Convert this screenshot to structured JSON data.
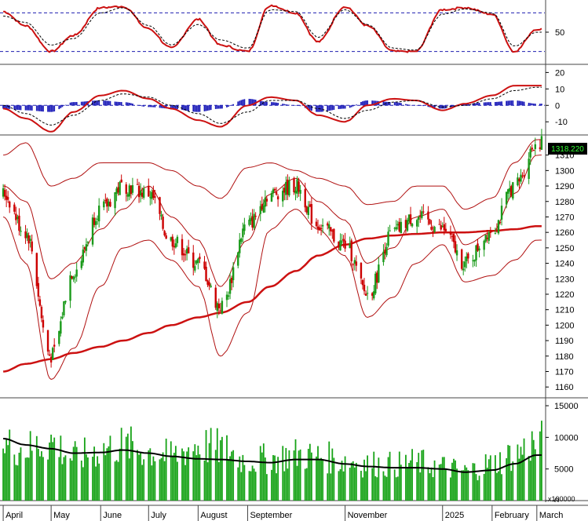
{
  "colors": {
    "up": "#1a9a1a",
    "down": "#cc0000",
    "avg": "#cc1111",
    "ma200": "#cc1111",
    "band": "#b01010",
    "signal": "#000000",
    "grid": "#1f1fb0",
    "volume": "#17a317",
    "volume_ma": "#000000",
    "label_bg": "#000000",
    "label_fg": "#33ff33"
  },
  "chart_data": [
    {
      "type": "line",
      "panel": "stochastic",
      "y_ticks": [
        50
      ],
      "ylim": [
        0,
        100
      ],
      "ref_lines": [
        80,
        20
      ],
      "x_dates": [
        "2024-04-01",
        "2024-04-15",
        "2024-05-01",
        "2024-05-15",
        "2024-06-01",
        "2024-06-15",
        "2024-07-01",
        "2024-07-15",
        "2024-08-01",
        "2024-08-15",
        "2024-09-01",
        "2024-09-15",
        "2024-10-01",
        "2024-10-15",
        "2024-11-01",
        "2024-11-15",
        "2024-12-01",
        "2024-12-15",
        "2025-01-01",
        "2025-01-15",
        "2025-02-01",
        "2025-02-15",
        "2025-03-01"
      ],
      "series": [
        {
          "values": [
            82,
            60,
            20,
            45,
            88,
            90,
            55,
            25,
            70,
            30,
            20,
            92,
            80,
            35,
            90,
            60,
            20,
            20,
            85,
            88,
            78,
            20,
            55
          ]
        },
        {
          "values": [
            75,
            65,
            30,
            40,
            80,
            88,
            60,
            30,
            62,
            38,
            25,
            85,
            82,
            42,
            85,
            62,
            25,
            22,
            78,
            86,
            80,
            28,
            50
          ]
        }
      ]
    },
    {
      "type": "line",
      "panel": "macd",
      "y_ticks": [
        20,
        10,
        0,
        -10
      ],
      "ylim": [
        -18,
        24
      ],
      "x_dates": [
        "2024-04-01",
        "2024-04-15",
        "2024-05-01",
        "2024-05-15",
        "2024-06-01",
        "2024-06-15",
        "2024-07-01",
        "2024-07-15",
        "2024-08-01",
        "2024-08-15",
        "2024-09-01",
        "2024-09-15",
        "2024-10-01",
        "2024-10-15",
        "2024-11-01",
        "2024-11-15",
        "2024-12-01",
        "2024-12-15",
        "2025-01-01",
        "2025-01-15",
        "2025-02-01",
        "2025-02-15",
        "2025-03-01"
      ],
      "series": [
        {
          "values": [
            -2,
            -8,
            -16,
            -4,
            6,
            9,
            4,
            -2,
            -9,
            -13,
            0,
            5,
            3,
            -6,
            -10,
            0,
            4,
            3,
            -3,
            1,
            6,
            12,
            12
          ]
        },
        {
          "values": [
            0,
            -5,
            -12,
            -6,
            3,
            7,
            5,
            0,
            -5,
            -11,
            -4,
            3,
            3,
            -2,
            -8,
            -3,
            2,
            3,
            -1,
            0,
            4,
            9,
            11
          ]
        },
        {
          "values": [
            -2,
            -3,
            -4,
            2,
            3,
            2,
            -1,
            -2,
            -4,
            -2,
            4,
            2,
            0,
            -4,
            -2,
            3,
            2,
            0,
            -2,
            1,
            2,
            3,
            1
          ]
        }
      ]
    },
    {
      "type": "candlestick",
      "panel": "price",
      "y_ticks": [
        1160,
        1170,
        1180,
        1190,
        1200,
        1210,
        1220,
        1230,
        1240,
        1250,
        1260,
        1270,
        1280,
        1290,
        1300,
        1310
      ],
      "ylim": [
        1153,
        1322
      ],
      "last_value": "1318.220",
      "x_dates": [
        "2024-04-01",
        "2024-04-15",
        "2024-05-01",
        "2024-05-15",
        "2024-06-01",
        "2024-06-15",
        "2024-07-01",
        "2024-07-15",
        "2024-08-01",
        "2024-08-15",
        "2024-09-01",
        "2024-09-15",
        "2024-10-01",
        "2024-10-15",
        "2024-11-01",
        "2024-11-15",
        "2024-12-01",
        "2024-12-15",
        "2025-01-01",
        "2025-01-15",
        "2025-02-01",
        "2025-02-15",
        "2025-03-01"
      ],
      "close": [
        1285,
        1260,
        1180,
        1235,
        1275,
        1290,
        1285,
        1255,
        1240,
        1212,
        1265,
        1285,
        1290,
        1265,
        1252,
        1220,
        1260,
        1270,
        1262,
        1240,
        1262,
        1290,
        1318
      ],
      "series": [
        {
          "values": [
            1290,
            1280,
            1230,
            1240,
            1262,
            1275,
            1290,
            1270,
            1255,
            1225,
            1255,
            1285,
            1295,
            1280,
            1268,
            1240,
            1250,
            1270,
            1275,
            1252,
            1260,
            1285,
            1310
          ]
        },
        {
          "values": [
            1170,
            1175,
            1178,
            1182,
            1186,
            1190,
            1195,
            1200,
            1205,
            1208,
            1215,
            1225,
            1235,
            1245,
            1252,
            1256,
            1258,
            1259,
            1260,
            1260,
            1261,
            1262,
            1264
          ]
        },
        {
          "values": [
            1310,
            1318,
            1290,
            1295,
            1305,
            1305,
            1305,
            1300,
            1290,
            1282,
            1302,
            1305,
            1300,
            1295,
            1290,
            1278,
            1280,
            1290,
            1290,
            1275,
            1282,
            1305,
            1320
          ]
        },
        {
          "values": [
            1270,
            1240,
            1165,
            1185,
            1225,
            1250,
            1255,
            1242,
            1225,
            1180,
            1208,
            1262,
            1275,
            1262,
            1245,
            1205,
            1218,
            1240,
            1252,
            1228,
            1232,
            1242,
            1255
          ]
        }
      ]
    },
    {
      "type": "bar",
      "panel": "volume",
      "y_ticks": [
        15000,
        10000,
        5000,
        0
      ],
      "ylim": [
        0,
        16000
      ],
      "unit_label": "x100000",
      "x_dates": [
        "2024-04-01",
        "2024-04-15",
        "2024-05-01",
        "2024-05-15",
        "2024-06-01",
        "2024-06-15",
        "2024-07-01",
        "2024-07-15",
        "2024-08-01",
        "2024-08-15",
        "2024-09-01",
        "2024-09-15",
        "2024-10-01",
        "2024-10-15",
        "2024-11-01",
        "2024-11-15",
        "2024-12-01",
        "2024-12-15",
        "2025-01-01",
        "2025-01-15",
        "2025-02-01",
        "2025-02-15",
        "2025-03-01"
      ],
      "values": [
        9000,
        8500,
        9500,
        7000,
        8200,
        9000,
        8000,
        7200,
        9000,
        8500,
        6500,
        6800,
        7500,
        7200,
        6500,
        6000,
        5800,
        6200,
        5500,
        4800,
        6000,
        7500,
        9500
      ],
      "series": [
        {
          "values": [
            9800,
            8800,
            8200,
            7500,
            7600,
            8000,
            7500,
            7000,
            6600,
            6500,
            6200,
            6000,
            6500,
            6500,
            5800,
            5400,
            5200,
            5200,
            5000,
            4500,
            4800,
            5800,
            7200
          ]
        }
      ]
    }
  ],
  "x_axis": {
    "labels": [
      {
        "text": "April",
        "date": "2024-04-01"
      },
      {
        "text": "May",
        "date": "2024-05-01"
      },
      {
        "text": "June",
        "date": "2024-06-01"
      },
      {
        "text": "July",
        "date": "2024-07-01"
      },
      {
        "text": "August",
        "date": "2024-08-01"
      },
      {
        "text": "September",
        "date": "2024-09-01"
      },
      {
        "text": "November",
        "date": "2024-11-01"
      },
      {
        "text": "2025",
        "date": "2025-01-01"
      },
      {
        "text": "February",
        "date": "2025-02-01"
      },
      {
        "text": "March",
        "date": "2025-03-01"
      }
    ]
  }
}
